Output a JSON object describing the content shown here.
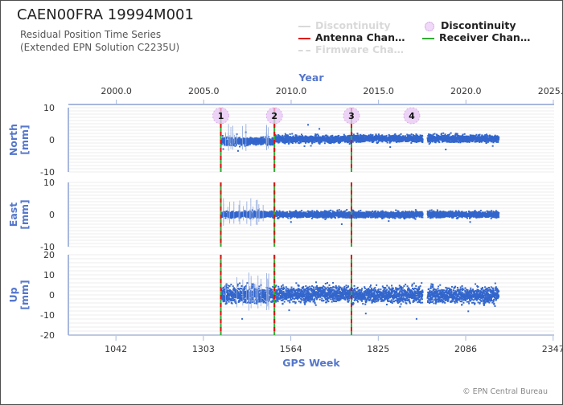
{
  "title": "CAEN00FRA 19994M001",
  "subtitle_line1": "Residual Position Time Series",
  "subtitle_line2": "(Extended EPN Solution C2235U)",
  "copyright": "© EPN Central Bureau",
  "legend": [
    {
      "label": "Discontinuity",
      "style": "line",
      "color": "#d9d9d9",
      "faded": true
    },
    {
      "label": "Discontinuity",
      "style": "circle",
      "color": "#e2b6f0",
      "faded": false
    },
    {
      "label": "Antenna Chan…",
      "style": "line",
      "color": "#dd1111",
      "faded": false
    },
    {
      "label": "Receiver Chan…",
      "style": "line",
      "color": "#33aa33",
      "faded": false
    },
    {
      "label": "Firmware Cha…",
      "style": "dashed",
      "color": "#d9d9d9",
      "faded": true
    }
  ],
  "colors": {
    "points": "#3366cc",
    "axis_label": "#5577cc",
    "axis_line": "#a8b8dd",
    "grid": "#e6e6e6",
    "antenna": "#dd1111",
    "receiver": "#33aa33",
    "discontinuity_marker": "#e8c6f4"
  },
  "chart_data": {
    "type": "scatter",
    "top_axis": {
      "label": "Year",
      "ticks": [
        "2000.0",
        "2005.0",
        "2010.0",
        "2015.0",
        "2020.0",
        "2025.0"
      ]
    },
    "bottom_axis": {
      "label": "GPS Week",
      "ticks": [
        "1042",
        "1303",
        "1564",
        "1825",
        "2086",
        "2347"
      ],
      "range": [
        900,
        2350
      ]
    },
    "data_span": {
      "start_week": 1355,
      "gap": [
        1958,
        1972
      ],
      "end_week": 2185
    },
    "discontinuities": [
      {
        "label": "1",
        "week": 1355,
        "antenna": true,
        "receiver": true
      },
      {
        "label": "2",
        "week": 1515,
        "antenna": true,
        "receiver": true
      },
      {
        "label": "3",
        "week": 1745,
        "antenna": true,
        "receiver": true
      },
      {
        "label": "4",
        "week": 1925,
        "antenna": false,
        "receiver": false
      }
    ],
    "panels": [
      {
        "name": "North",
        "unit": "[mm]",
        "ylim": [
          -10,
          10
        ],
        "ticks": [
          "10",
          "0",
          "-10"
        ],
        "tick_values": [
          10,
          0,
          -10
        ],
        "noise_mm": 0.8,
        "offsets": [
          {
            "start": 1355,
            "end": 1515,
            "mean": -0.5
          },
          {
            "start": 1515,
            "end": 1745,
            "mean": 0.2
          },
          {
            "start": 1745,
            "end": 2185,
            "mean": 0.4
          }
        ]
      },
      {
        "name": "East",
        "unit": "[mm]",
        "ylim": [
          -10,
          10
        ],
        "ticks": [
          "10",
          "0",
          "-10"
        ],
        "tick_values": [
          10,
          0,
          -10
        ],
        "noise_mm": 0.7,
        "offsets": [
          {
            "start": 1355,
            "end": 1515,
            "mean": 0.0
          },
          {
            "start": 1515,
            "end": 1745,
            "mean": 0.0
          },
          {
            "start": 1745,
            "end": 2185,
            "mean": 0.0
          }
        ]
      },
      {
        "name": "Up",
        "unit": "[mm]",
        "ylim": [
          -20,
          20
        ],
        "ticks": [
          "20",
          "10",
          "0",
          "-10",
          "-20"
        ],
        "tick_values": [
          20,
          10,
          0,
          -10,
          -20
        ],
        "noise_mm": 2.8,
        "offsets": [
          {
            "start": 1355,
            "end": 1515,
            "mean": 0.0
          },
          {
            "start": 1515,
            "end": 1745,
            "mean": 0.5
          },
          {
            "start": 1745,
            "end": 2185,
            "mean": 0.0
          }
        ]
      }
    ]
  }
}
